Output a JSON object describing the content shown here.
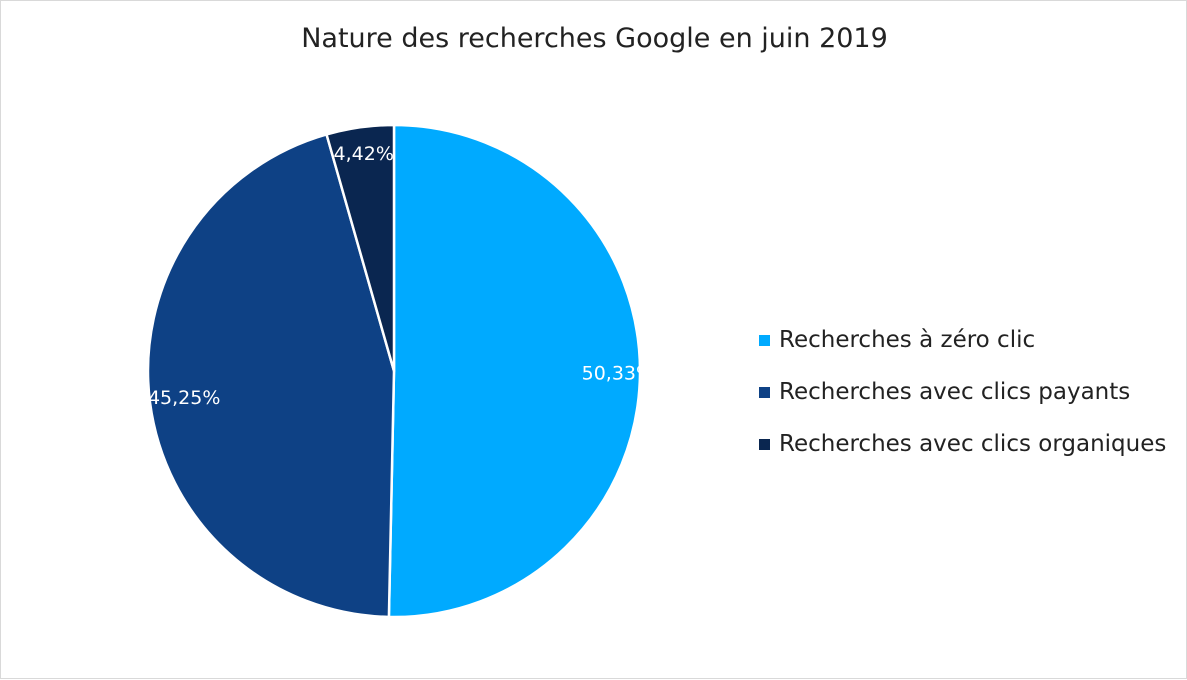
{
  "chart_data": {
    "type": "pie",
    "title": "Nature des recherches Google en juin 2019",
    "categories": [
      "Recherches à zéro clic",
      "Recherches avec clics payants",
      "Recherches avec clics organiques"
    ],
    "values": [
      50.33,
      45.25,
      4.42
    ],
    "data_labels": [
      "50,33%",
      "45,25%",
      "4,42%"
    ],
    "colors": [
      "#00aaff",
      "#0e4185",
      "#0a2650"
    ],
    "label_colors": [
      "#ffffff",
      "#ffffff",
      "#ffffff"
    ],
    "legend_position": "right",
    "start": "top",
    "direction": "clockwise"
  }
}
